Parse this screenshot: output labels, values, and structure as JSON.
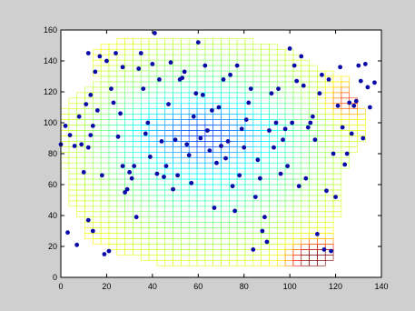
{
  "chart_data": {
    "type": "scatter",
    "title": "",
    "xlabel": "",
    "ylabel": "",
    "xlim": [
      0,
      140
    ],
    "ylim": [
      0,
      160
    ],
    "xticks": [
      0,
      20,
      40,
      60,
      80,
      100,
      120,
      140
    ],
    "yticks": [
      0,
      20,
      40,
      60,
      80,
      100,
      120,
      140,
      160
    ],
    "grid": "off",
    "background_color": "#cfcfcf",
    "axes_color": "#ffffff",
    "points": {
      "color": "#0a0aa8",
      "x": [
        0,
        2,
        3,
        4,
        6,
        7,
        12,
        13,
        14,
        14,
        12,
        15,
        16,
        17,
        12,
        13,
        19,
        20,
        21,
        22,
        24,
        25,
        27,
        28,
        27,
        30,
        31,
        32,
        33,
        34,
        35,
        37,
        38,
        39,
        40,
        41,
        42,
        43,
        44,
        45,
        47,
        48,
        49,
        50,
        51,
        52,
        55,
        57,
        58,
        59,
        60,
        61,
        62,
        63,
        64,
        65,
        67,
        69,
        71,
        72,
        73,
        75,
        76,
        77,
        78,
        79,
        80,
        81,
        82,
        85,
        86,
        87,
        88,
        89,
        90,
        92,
        93,
        94,
        96,
        97,
        98,
        100,
        102,
        104,
        105,
        106,
        108,
        110,
        111,
        113,
        115,
        117,
        119,
        120,
        124,
        125,
        126,
        127,
        128,
        130,
        132,
        135,
        137,
        8,
        9,
        10,
        11,
        18,
        23,
        26,
        29,
        36,
        46,
        53,
        54,
        56,
        66,
        68,
        70,
        74,
        83,
        84,
        91,
        95,
        99,
        101,
        103,
        107,
        109,
        112,
        114,
        116,
        118,
        121,
        122,
        123,
        129,
        131,
        133,
        134
      ],
      "y": [
        86,
        98,
        29,
        92,
        85,
        21,
        145,
        118,
        98,
        30,
        37,
        133,
        108,
        143,
        84,
        92,
        15,
        140,
        17,
        122,
        145,
        91,
        72,
        55,
        136,
        68,
        64,
        72,
        39,
        135,
        145,
        93,
        100,
        78,
        138,
        158,
        67,
        128,
        88,
        65,
        112,
        139,
        57,
        89,
        66,
        128,
        86,
        61,
        104,
        119,
        152,
        90,
        118,
        137,
        95,
        82,
        45,
        110,
        128,
        77,
        88,
        59,
        43,
        137,
        66,
        96,
        84,
        102,
        113,
        52,
        76,
        64,
        30,
        39,
        23,
        119,
        84,
        100,
        67,
        89,
        96,
        148,
        137,
        59,
        143,
        124,
        97,
        104,
        89,
        119,
        18,
        128,
        80,
        52,
        73,
        80,
        113,
        93,
        111,
        137,
        90,
        110,
        126,
        104,
        86,
        68,
        112,
        66,
        113,
        106,
        57,
        122,
        72,
        129,
        133,
        79,
        108,
        74,
        85,
        131,
        122,
        18,
        95,
        122,
        72,
        100,
        127,
        64,
        100,
        28,
        131,
        56,
        17,
        111,
        136,
        97,
        114,
        127,
        138,
        123
      ]
    }
  }
}
